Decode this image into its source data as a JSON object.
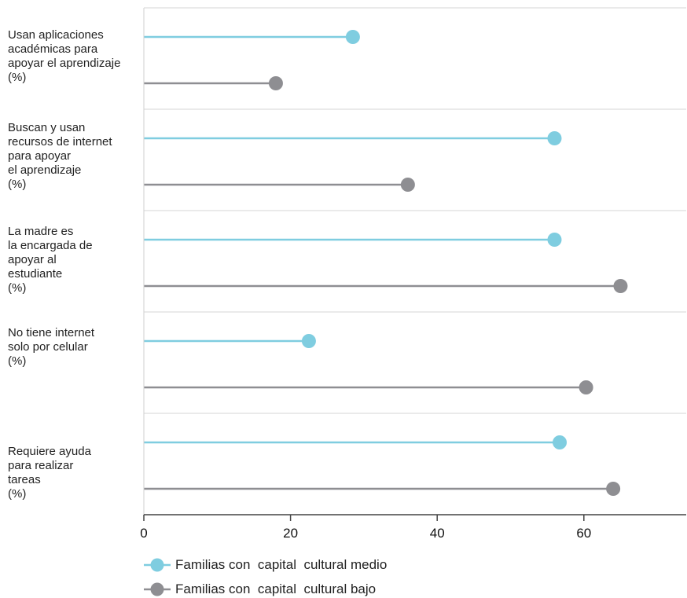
{
  "chart_data": {
    "type": "lollipop",
    "orientation": "horizontal",
    "categories": [
      "Usan aplicaciones\nacadémicas para\napoyar el aprendizaje\n(%)",
      "Buscan y usan\nrecursos de internet\npara apoyar\nel aprendizaje\n(%)",
      "La madre es\nla encargada de\napoyar al\nestudiante\n(%)",
      "No tiene internet\nsolo por celular\n(%)",
      "Requiere ayuda\npara realizar\ntareas\n(%)"
    ],
    "series": [
      {
        "name": "Familias con  capital  cultural medio",
        "color": "#7fcde0",
        "values": [
          28.5,
          56,
          56,
          22.5,
          56.7
        ]
      },
      {
        "name": "Familias con  capital  cultural bajo",
        "color": "#8e8e92",
        "values": [
          18,
          36,
          65,
          60.3,
          64
        ]
      }
    ],
    "xticks": [
      0,
      20,
      40,
      60
    ],
    "xlim": [
      0,
      74
    ],
    "grid": "horizontal separators",
    "legend_position": "bottom-left"
  }
}
